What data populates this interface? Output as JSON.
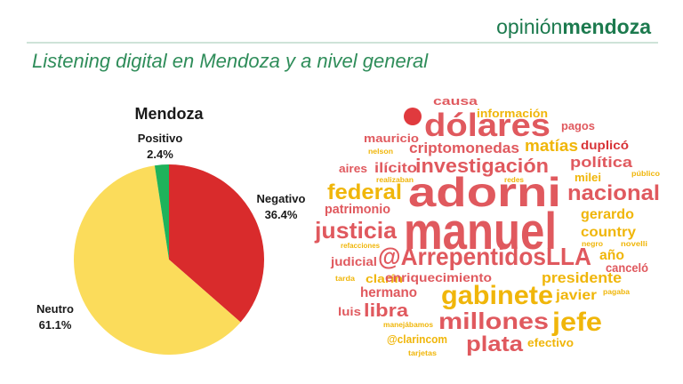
{
  "header": {
    "brand_light": "opinión",
    "brand_bold": "mendoza",
    "title": "Listening digital en Mendoza y a nivel general"
  },
  "chart_data": {
    "type": "pie",
    "title": "Mendoza",
    "categories": [
      "Negativo",
      "Neutro",
      "Positivo"
    ],
    "values": [
      36.4,
      61.1,
      2.4
    ],
    "value_labels": [
      "36.4%",
      "61.1%",
      "2.4%"
    ],
    "colors": [
      "#d92b2c",
      "#fbdc5b",
      "#1fb35b"
    ]
  },
  "word_cloud": {
    "words": [
      "causa",
      "información",
      "dólares",
      "pagos",
      "mauricio",
      "criptomonedas",
      "matías",
      "duplicó",
      "nelson",
      "política",
      "investigación",
      "ilícito",
      "aires",
      "público",
      "realizaban",
      "redes",
      "milei",
      "federal",
      "adorni",
      "nacional",
      "patrimonio",
      "gerardo",
      "justicia",
      "manuel",
      "country",
      "refacciones",
      "negro",
      "novelli",
      "@ArrepentidosLLA",
      "año",
      "judicial",
      "canceló",
      "tarda",
      "clarín",
      "enriquecimiento",
      "presidente",
      "hermano",
      "gabinete",
      "javier",
      "pagaba",
      "luis",
      "libra",
      "manejábamos",
      "millones",
      "jefe",
      "@clarincom",
      "plata",
      "efectivo",
      "tarjetas"
    ]
  }
}
